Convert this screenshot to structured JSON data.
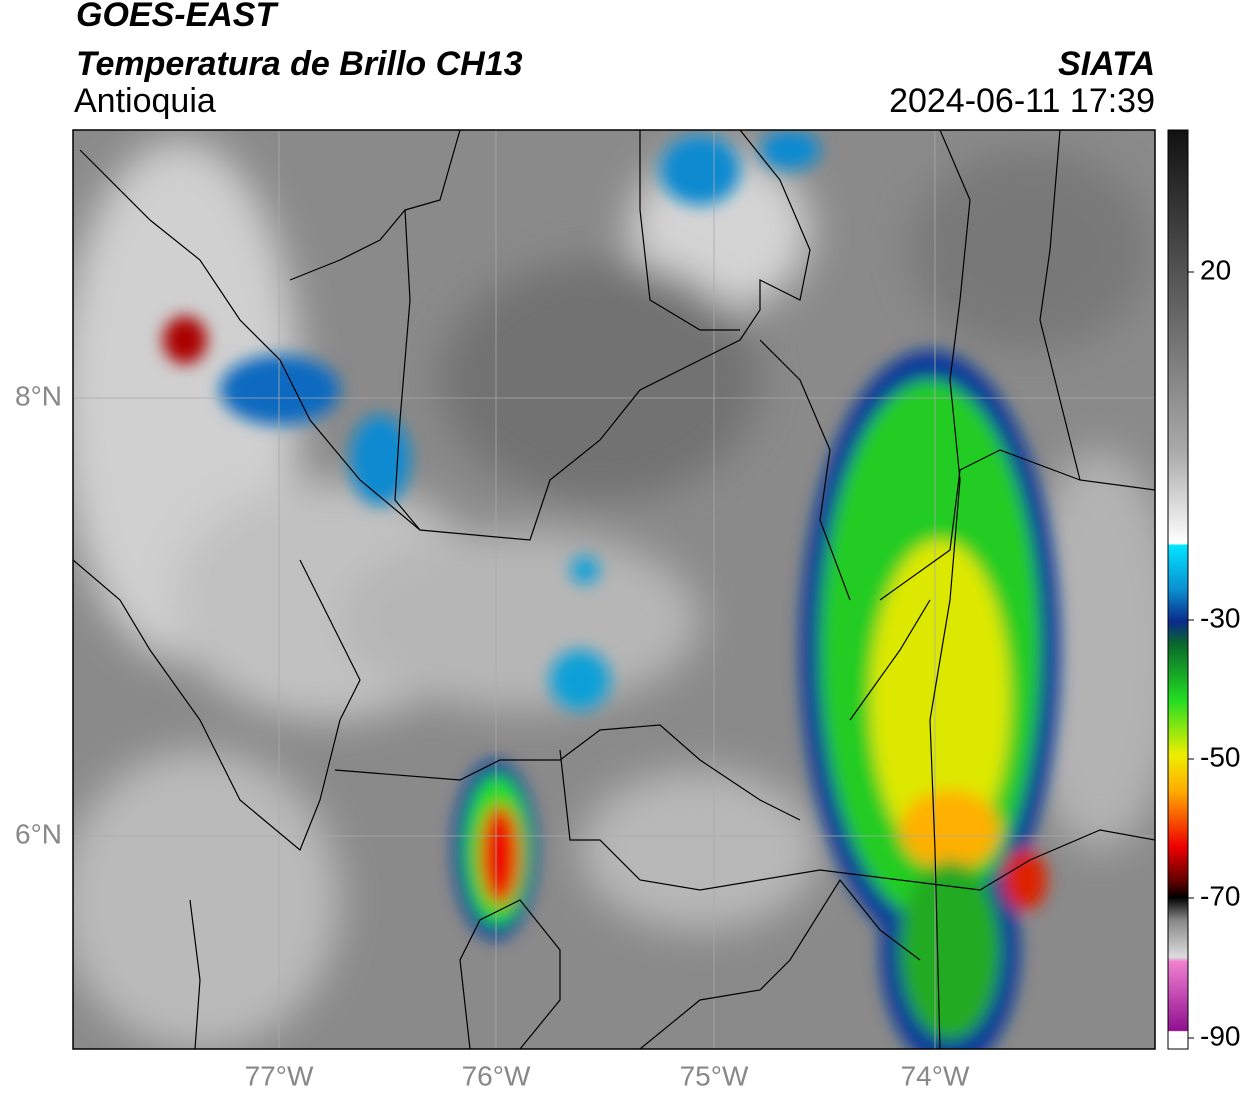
{
  "header": {
    "satellite": "GOES-EAST",
    "product": "Temperatura de Brillo CH13",
    "region": "Antioquia",
    "source": "SIATA",
    "timestamp": "2024-06-11 17:39"
  },
  "map": {
    "lat_labels": [
      "8°N",
      "6°N"
    ],
    "lon_labels": [
      "77°W",
      "76°W",
      "75°W",
      "74°W"
    ]
  },
  "colorbar": {
    "ticks": [
      "20",
      "-30",
      "-50",
      "-70",
      "-90"
    ]
  }
}
